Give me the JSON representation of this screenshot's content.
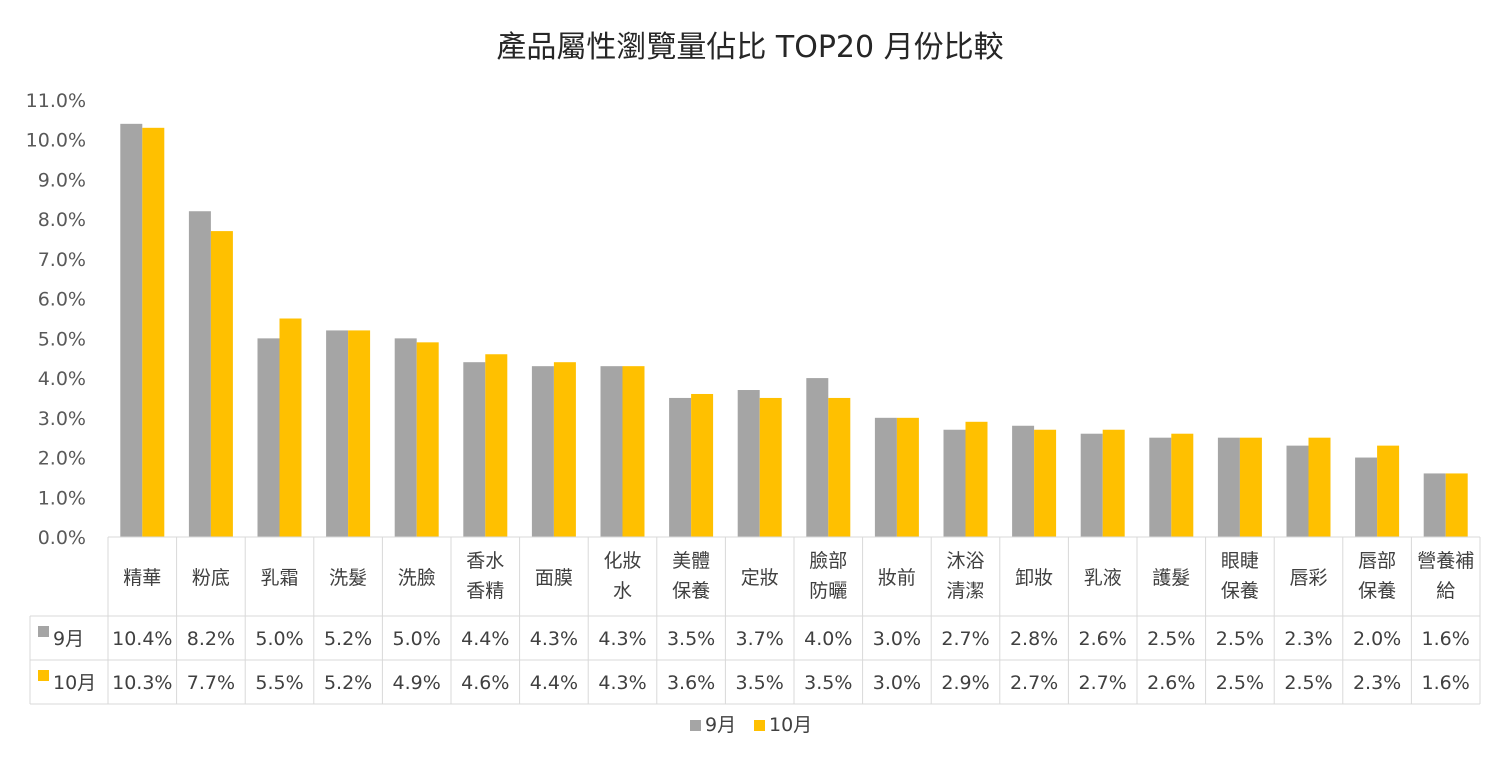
{
  "chart_data": {
    "type": "bar",
    "title": "產品屬性瀏覽量佔比 TOP20 月份比較",
    "xlabel": "",
    "ylabel": "",
    "ylim": [
      0,
      11
    ],
    "yticks": [
      "0.0%",
      "1.0%",
      "2.0%",
      "3.0%",
      "4.0%",
      "5.0%",
      "6.0%",
      "7.0%",
      "8.0%",
      "9.0%",
      "10.0%",
      "11.0%"
    ],
    "categories": [
      [
        "精華"
      ],
      [
        "粉底"
      ],
      [
        "乳霜"
      ],
      [
        "洗髮"
      ],
      [
        "洗臉"
      ],
      [
        "香水",
        "香精"
      ],
      [
        "面膜"
      ],
      [
        "化妝",
        "水"
      ],
      [
        "美體",
        "保養"
      ],
      [
        "定妝"
      ],
      [
        "臉部",
        "防曬"
      ],
      [
        "妝前"
      ],
      [
        "沐浴",
        "清潔"
      ],
      [
        "卸妝"
      ],
      [
        "乳液"
      ],
      [
        "護髮"
      ],
      [
        "眼睫",
        "保養"
      ],
      [
        "唇彩"
      ],
      [
        "唇部",
        "保養"
      ],
      [
        "營養補",
        "給"
      ]
    ],
    "series": [
      {
        "name": "9月",
        "color": "#A5A5A5",
        "values": [
          10.4,
          8.2,
          5.0,
          5.2,
          5.0,
          4.4,
          4.3,
          4.3,
          3.5,
          3.7,
          4.0,
          3.0,
          2.7,
          2.8,
          2.6,
          2.5,
          2.5,
          2.3,
          2.0,
          1.6
        ],
        "labels": [
          "10.4%",
          "8.2%",
          "5.0%",
          "5.2%",
          "5.0%",
          "4.4%",
          "4.3%",
          "4.3%",
          "3.5%",
          "3.7%",
          "4.0%",
          "3.0%",
          "2.7%",
          "2.8%",
          "2.6%",
          "2.5%",
          "2.5%",
          "2.3%",
          "2.0%",
          "1.6%"
        ]
      },
      {
        "name": "10月",
        "color": "#FFC000",
        "values": [
          10.3,
          7.7,
          5.5,
          5.2,
          4.9,
          4.6,
          4.4,
          4.3,
          3.6,
          3.5,
          3.5,
          3.0,
          2.9,
          2.7,
          2.7,
          2.6,
          2.5,
          2.5,
          2.3,
          1.6
        ],
        "labels": [
          "10.3%",
          "7.7%",
          "5.5%",
          "5.2%",
          "4.9%",
          "4.6%",
          "4.4%",
          "4.3%",
          "3.6%",
          "3.5%",
          "3.5%",
          "3.0%",
          "2.9%",
          "2.7%",
          "2.7%",
          "2.6%",
          "2.5%",
          "2.5%",
          "2.3%",
          "1.6%"
        ]
      }
    ],
    "grid": false,
    "legend_position": "bottom",
    "data_table": true
  }
}
